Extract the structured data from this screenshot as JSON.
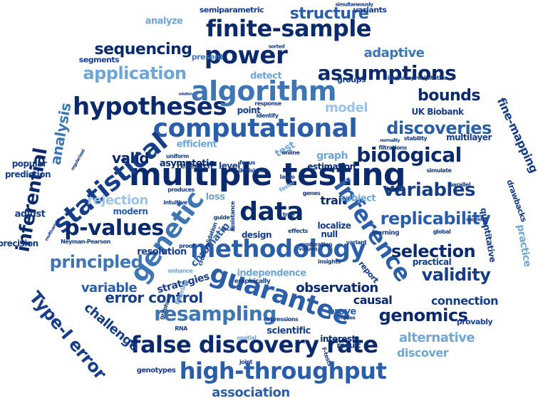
{
  "colors": {
    "navy": "#0b2a6b",
    "dark_blue": "#163d86",
    "mid_blue": "#2b5ea8",
    "steel_blue": "#3d76b3",
    "light_blue": "#6fa6d6",
    "pale_blue": "#9cc3e6",
    "background": "#ffffff"
  },
  "words": [
    "multiple testing",
    "computational",
    "hypotheses",
    "finite-sample",
    "power",
    "algorithm",
    "methodology",
    "data",
    "genetic",
    "inference",
    "statistical",
    "false discovery rate",
    "high-throughput",
    "guarantee",
    "p-values",
    "resampling",
    "biological",
    "variables",
    "discoveries",
    "assumptions",
    "application",
    "structure",
    "replicability",
    "inferential",
    "principled",
    "selection",
    "validity",
    "genomics",
    "error control",
    "Type-I error",
    "association",
    "observation",
    "bounds",
    "model",
    "adaptive",
    "sequencing",
    "rejection",
    "analysis",
    "fine-mapping",
    "valid",
    "variable",
    "connection",
    "alternative",
    "discover",
    "challenge",
    "causal",
    "trait",
    "localize",
    "graph",
    "test",
    "adjust",
    "resolution",
    "chromatin",
    "independence",
    "strategies",
    "interest",
    "prove",
    "result",
    "scientific",
    "semiparametric",
    "analyze",
    "variants",
    "present",
    "segments",
    "UK Biobank",
    "multilayer",
    "popular",
    "prediction",
    "precision",
    "Neyman-Pearson",
    "modern",
    "level",
    "estimation",
    "research",
    "detect",
    "asymptotic",
    "efficient",
    "subject",
    "loss",
    "design",
    "null",
    "learning",
    "practical",
    "report",
    "provably",
    "quantitative",
    "practice",
    "drawbacks",
    "simultaneously",
    "sorted",
    "immunoprecipitation",
    "groups",
    "point",
    "identify",
    "response",
    "filtrations",
    "online",
    "lasso",
    "focus",
    "genes",
    "faster",
    "simulate",
    "parallel",
    "spurious",
    "global",
    "variant",
    "exploration",
    "values",
    "effects",
    "insights",
    "empirically",
    "enhance",
    "filtering",
    "graphical",
    "expressions",
    "implies",
    "F-tests",
    "tree",
    "spatial",
    "joint",
    "RNA",
    "genotypes",
    "regularized",
    "multivariate",
    "solution",
    "uniform",
    "decisions",
    "produces",
    "intuitive",
    "guide",
    "assistance",
    "local",
    "cross-validation",
    "proof",
    "stability",
    "normality"
  ]
}
